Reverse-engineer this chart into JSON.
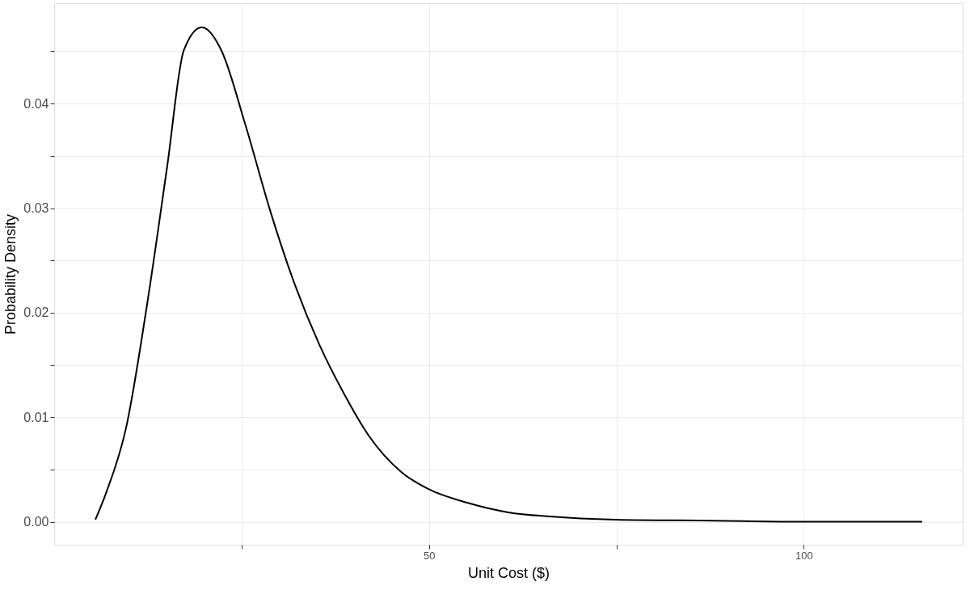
{
  "chart_data": {
    "type": "line",
    "xlabel": "Unit Cost ($)",
    "ylabel": "Probability Density",
    "x": [
      5.5,
      6.9,
      9.6,
      12.4,
      15.1,
      17.3,
      19.7,
      22.3,
      25.5,
      28.8,
      32.1,
      35.4,
      38.7,
      42.0,
      46.4,
      50,
      55.2,
      60.6,
      66.1,
      74.9,
      88,
      99,
      115.8
    ],
    "series": [
      {
        "color": "#000000",
        "values": [
          0.0002,
          0.0027,
          0.009,
          0.0208,
          0.0341,
          0.0451,
          0.0473,
          0.0451,
          0.038,
          0.0298,
          0.0227,
          0.0169,
          0.0122,
          0.0082,
          0.0047,
          0.0031,
          0.0018,
          0.0009,
          0.0005,
          0.0002,
          0.0001,
          0,
          0
        ]
      }
    ],
    "xlim": [
      0,
      121.2
    ],
    "ylim": [
      -0.0022,
      0.0496
    ],
    "xticks": [
      {
        "value": 25,
        "label": null
      },
      50,
      {
        "value": 75,
        "label": null
      },
      100
    ],
    "yticks": [
      {
        "value": 0,
        "label": "0.00"
      },
      {
        "value": 0.005,
        "label": null
      },
      {
        "value": 0.01,
        "label": "0.01"
      },
      {
        "value": 0.015,
        "label": null
      },
      {
        "value": 0.02,
        "label": "0.02"
      },
      {
        "value": 0.025,
        "label": null
      },
      {
        "value": 0.03,
        "label": "0.03"
      },
      {
        "value": 0.035,
        "label": null
      },
      {
        "value": 0.04,
        "label": "0.04"
      },
      {
        "value": 0.045,
        "label": null
      }
    ],
    "grid": true,
    "marker": "none",
    "line_style": "solid"
  }
}
